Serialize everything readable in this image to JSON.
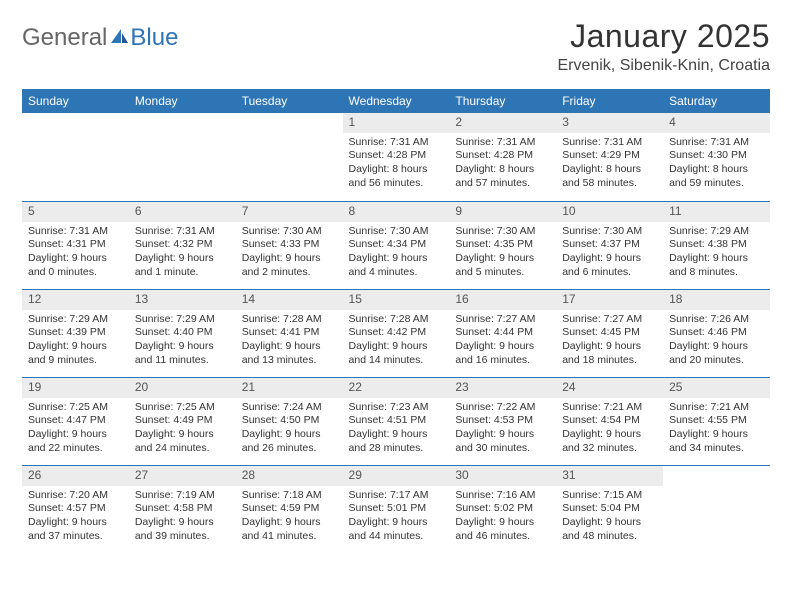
{
  "brand": {
    "part1": "General",
    "part2": "Blue"
  },
  "title": "January 2025",
  "location": "Ervenik, Sibenik-Knin, Croatia",
  "colors": {
    "header_bg": "#2e75b6",
    "header_text": "#ffffff",
    "daynum_bg": "#ececec",
    "row_divider": "#2e75b6",
    "text": "#333333",
    "background": "#ffffff"
  },
  "typography": {
    "title_fontsize": 32,
    "location_fontsize": 16,
    "dayheader_fontsize": 12,
    "body_fontsize": 10.5
  },
  "columns": [
    "Sunday",
    "Monday",
    "Tuesday",
    "Wednesday",
    "Thursday",
    "Friday",
    "Saturday"
  ],
  "weeks": [
    [
      null,
      null,
      null,
      {
        "n": "1",
        "sunrise": "7:31 AM",
        "sunset": "4:28 PM",
        "daylight": "8 hours and 56 minutes."
      },
      {
        "n": "2",
        "sunrise": "7:31 AM",
        "sunset": "4:28 PM",
        "daylight": "8 hours and 57 minutes."
      },
      {
        "n": "3",
        "sunrise": "7:31 AM",
        "sunset": "4:29 PM",
        "daylight": "8 hours and 58 minutes."
      },
      {
        "n": "4",
        "sunrise": "7:31 AM",
        "sunset": "4:30 PM",
        "daylight": "8 hours and 59 minutes."
      }
    ],
    [
      {
        "n": "5",
        "sunrise": "7:31 AM",
        "sunset": "4:31 PM",
        "daylight": "9 hours and 0 minutes."
      },
      {
        "n": "6",
        "sunrise": "7:31 AM",
        "sunset": "4:32 PM",
        "daylight": "9 hours and 1 minute."
      },
      {
        "n": "7",
        "sunrise": "7:30 AM",
        "sunset": "4:33 PM",
        "daylight": "9 hours and 2 minutes."
      },
      {
        "n": "8",
        "sunrise": "7:30 AM",
        "sunset": "4:34 PM",
        "daylight": "9 hours and 4 minutes."
      },
      {
        "n": "9",
        "sunrise": "7:30 AM",
        "sunset": "4:35 PM",
        "daylight": "9 hours and 5 minutes."
      },
      {
        "n": "10",
        "sunrise": "7:30 AM",
        "sunset": "4:37 PM",
        "daylight": "9 hours and 6 minutes."
      },
      {
        "n": "11",
        "sunrise": "7:29 AM",
        "sunset": "4:38 PM",
        "daylight": "9 hours and 8 minutes."
      }
    ],
    [
      {
        "n": "12",
        "sunrise": "7:29 AM",
        "sunset": "4:39 PM",
        "daylight": "9 hours and 9 minutes."
      },
      {
        "n": "13",
        "sunrise": "7:29 AM",
        "sunset": "4:40 PM",
        "daylight": "9 hours and 11 minutes."
      },
      {
        "n": "14",
        "sunrise": "7:28 AM",
        "sunset": "4:41 PM",
        "daylight": "9 hours and 13 minutes."
      },
      {
        "n": "15",
        "sunrise": "7:28 AM",
        "sunset": "4:42 PM",
        "daylight": "9 hours and 14 minutes."
      },
      {
        "n": "16",
        "sunrise": "7:27 AM",
        "sunset": "4:44 PM",
        "daylight": "9 hours and 16 minutes."
      },
      {
        "n": "17",
        "sunrise": "7:27 AM",
        "sunset": "4:45 PM",
        "daylight": "9 hours and 18 minutes."
      },
      {
        "n": "18",
        "sunrise": "7:26 AM",
        "sunset": "4:46 PM",
        "daylight": "9 hours and 20 minutes."
      }
    ],
    [
      {
        "n": "19",
        "sunrise": "7:25 AM",
        "sunset": "4:47 PM",
        "daylight": "9 hours and 22 minutes."
      },
      {
        "n": "20",
        "sunrise": "7:25 AM",
        "sunset": "4:49 PM",
        "daylight": "9 hours and 24 minutes."
      },
      {
        "n": "21",
        "sunrise": "7:24 AM",
        "sunset": "4:50 PM",
        "daylight": "9 hours and 26 minutes."
      },
      {
        "n": "22",
        "sunrise": "7:23 AM",
        "sunset": "4:51 PM",
        "daylight": "9 hours and 28 minutes."
      },
      {
        "n": "23",
        "sunrise": "7:22 AM",
        "sunset": "4:53 PM",
        "daylight": "9 hours and 30 minutes."
      },
      {
        "n": "24",
        "sunrise": "7:21 AM",
        "sunset": "4:54 PM",
        "daylight": "9 hours and 32 minutes."
      },
      {
        "n": "25",
        "sunrise": "7:21 AM",
        "sunset": "4:55 PM",
        "daylight": "9 hours and 34 minutes."
      }
    ],
    [
      {
        "n": "26",
        "sunrise": "7:20 AM",
        "sunset": "4:57 PM",
        "daylight": "9 hours and 37 minutes."
      },
      {
        "n": "27",
        "sunrise": "7:19 AM",
        "sunset": "4:58 PM",
        "daylight": "9 hours and 39 minutes."
      },
      {
        "n": "28",
        "sunrise": "7:18 AM",
        "sunset": "4:59 PM",
        "daylight": "9 hours and 41 minutes."
      },
      {
        "n": "29",
        "sunrise": "7:17 AM",
        "sunset": "5:01 PM",
        "daylight": "9 hours and 44 minutes."
      },
      {
        "n": "30",
        "sunrise": "7:16 AM",
        "sunset": "5:02 PM",
        "daylight": "9 hours and 46 minutes."
      },
      {
        "n": "31",
        "sunrise": "7:15 AM",
        "sunset": "5:04 PM",
        "daylight": "9 hours and 48 minutes."
      },
      null
    ]
  ],
  "labels": {
    "sunrise": "Sunrise:",
    "sunset": "Sunset:",
    "daylight": "Daylight:"
  }
}
